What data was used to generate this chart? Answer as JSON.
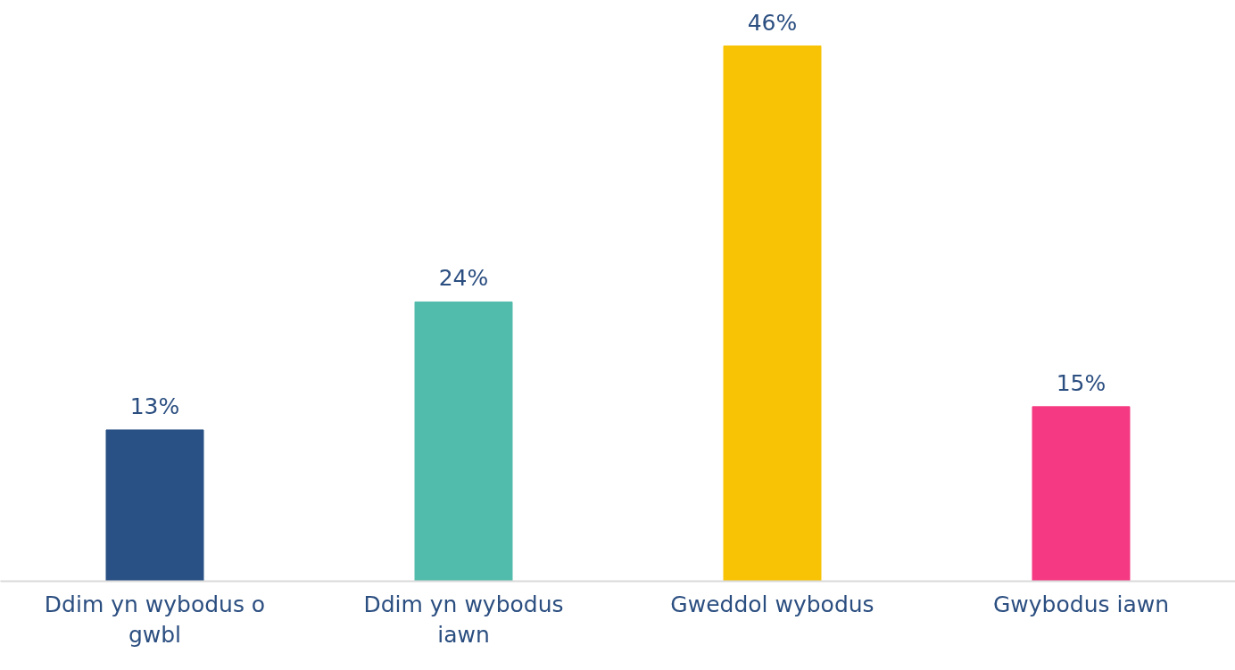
{
  "chart_data": {
    "type": "bar",
    "categories": [
      "Ddim yn wybodus o gwbl",
      "Ddim yn wybodus iawn",
      "Gweddol wybodus",
      "Gwybodus iawn"
    ],
    "values": [
      13,
      24,
      46,
      15
    ],
    "colors": [
      "#2a5185",
      "#52bcac",
      "#f8c304",
      "#f53a83"
    ],
    "value_labels": [
      "13%",
      "24%",
      "46%",
      "15%"
    ],
    "grid": false
  }
}
